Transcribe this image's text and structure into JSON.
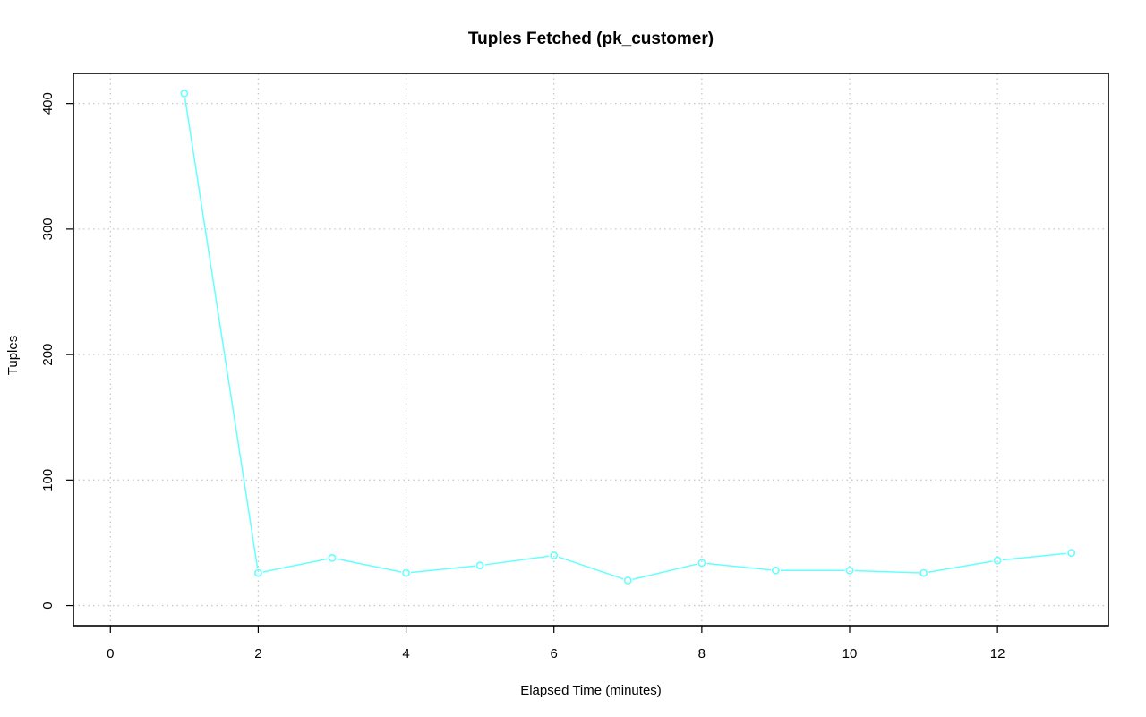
{
  "chart_data": {
    "type": "line",
    "title": "Tuples Fetched (pk_customer)",
    "xlabel": "Elapsed Time (minutes)",
    "ylabel": "Tuples",
    "xlim": [
      -0.5,
      13.5
    ],
    "ylim": [
      -16,
      424
    ],
    "x_ticks": [
      0,
      2,
      4,
      6,
      8,
      10,
      12
    ],
    "y_ticks": [
      0,
      100,
      200,
      300,
      400
    ],
    "grid": true,
    "legend": "none",
    "series": [
      {
        "color": "#66ffff",
        "marker": "circle-open",
        "x": [
          1,
          2,
          3,
          4,
          5,
          6,
          7,
          8,
          9,
          10,
          11,
          12,
          13
        ],
        "y": [
          408,
          26,
          38,
          26,
          32,
          40,
          20,
          34,
          28,
          28,
          26,
          36,
          42
        ]
      }
    ]
  }
}
